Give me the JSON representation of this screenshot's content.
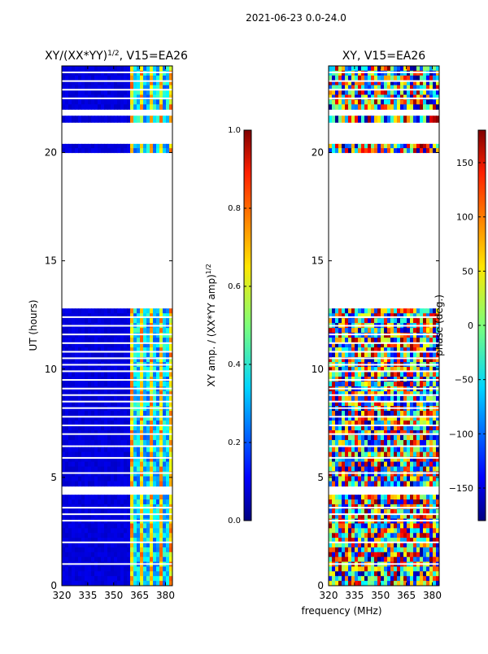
{
  "figure": {
    "suptitle": "2021-06-23 0.0-24.0",
    "xlabel_shared": "frequency (MHz)"
  },
  "chart_data": [
    {
      "type": "heatmap",
      "title_main": "XY/(XX*YY)",
      "title_sup": "1/2",
      "title_rest": ", V15=EA26",
      "ylabel": "UT (hours)",
      "xlim": [
        320,
        384
      ],
      "ylim": [
        0,
        24
      ],
      "xticks": [
        320,
        335,
        350,
        365,
        380
      ],
      "yticks": [
        0,
        5,
        10,
        15,
        20
      ],
      "colorbar": {
        "label_main": "XY amp. / (XX*YY amp)",
        "label_sup": "1/2",
        "range": [
          0.0,
          1.0
        ],
        "ticks": [
          "0.0",
          "0.2",
          "0.4",
          "0.6",
          "0.8",
          "1.0"
        ]
      },
      "data_segments_ut": [
        [
          0,
          4.2
        ],
        [
          4.6,
          6.4
        ],
        [
          6.5,
          12.8
        ],
        [
          20.0,
          20.4
        ],
        [
          21.4,
          21.7
        ],
        [
          22.0,
          24.0
        ]
      ],
      "gap_lines_ut": [
        1.0,
        2.0,
        3.0,
        3.3,
        3.6,
        5.2,
        5.9,
        7.0,
        7.4,
        7.8,
        8.2,
        8.5,
        8.8,
        9.1,
        9.5,
        9.9,
        10.2,
        10.5,
        10.8,
        11.2,
        11.6,
        12.0,
        12.4,
        22.5,
        22.9,
        23.3,
        23.7
      ],
      "bright_band_mhz": [
        359,
        384
      ]
    },
    {
      "type": "heatmap",
      "title": "XY, V15=EA26",
      "xlim": [
        320,
        384
      ],
      "ylim": [
        0,
        24
      ],
      "xticks": [
        320,
        335,
        350,
        365,
        380
      ],
      "yticks": [
        0,
        5,
        10,
        15,
        20
      ],
      "colorbar": {
        "label": "phase (deg.)",
        "range": [
          -180,
          180
        ],
        "ticks": [
          "−150",
          "−100",
          "−50",
          "0",
          "50",
          "100",
          "150"
        ],
        "tick_values": [
          -150,
          -100,
          -50,
          0,
          50,
          100,
          150
        ]
      },
      "data_segments_ut": [
        [
          0,
          4.2
        ],
        [
          4.6,
          6.4
        ],
        [
          6.5,
          12.8
        ],
        [
          20.0,
          20.4
        ],
        [
          21.4,
          21.7
        ],
        [
          22.0,
          24.0
        ]
      ],
      "gap_lines_ut": [
        1.0,
        2.0,
        3.0,
        3.3,
        3.6,
        5.2,
        5.9,
        7.0,
        7.4,
        7.8,
        8.2,
        8.5,
        8.8,
        9.1,
        9.5,
        9.9,
        10.2,
        10.5,
        10.8,
        11.2,
        11.6,
        12.0,
        12.4,
        22.5,
        22.9,
        23.3,
        23.7
      ]
    }
  ]
}
